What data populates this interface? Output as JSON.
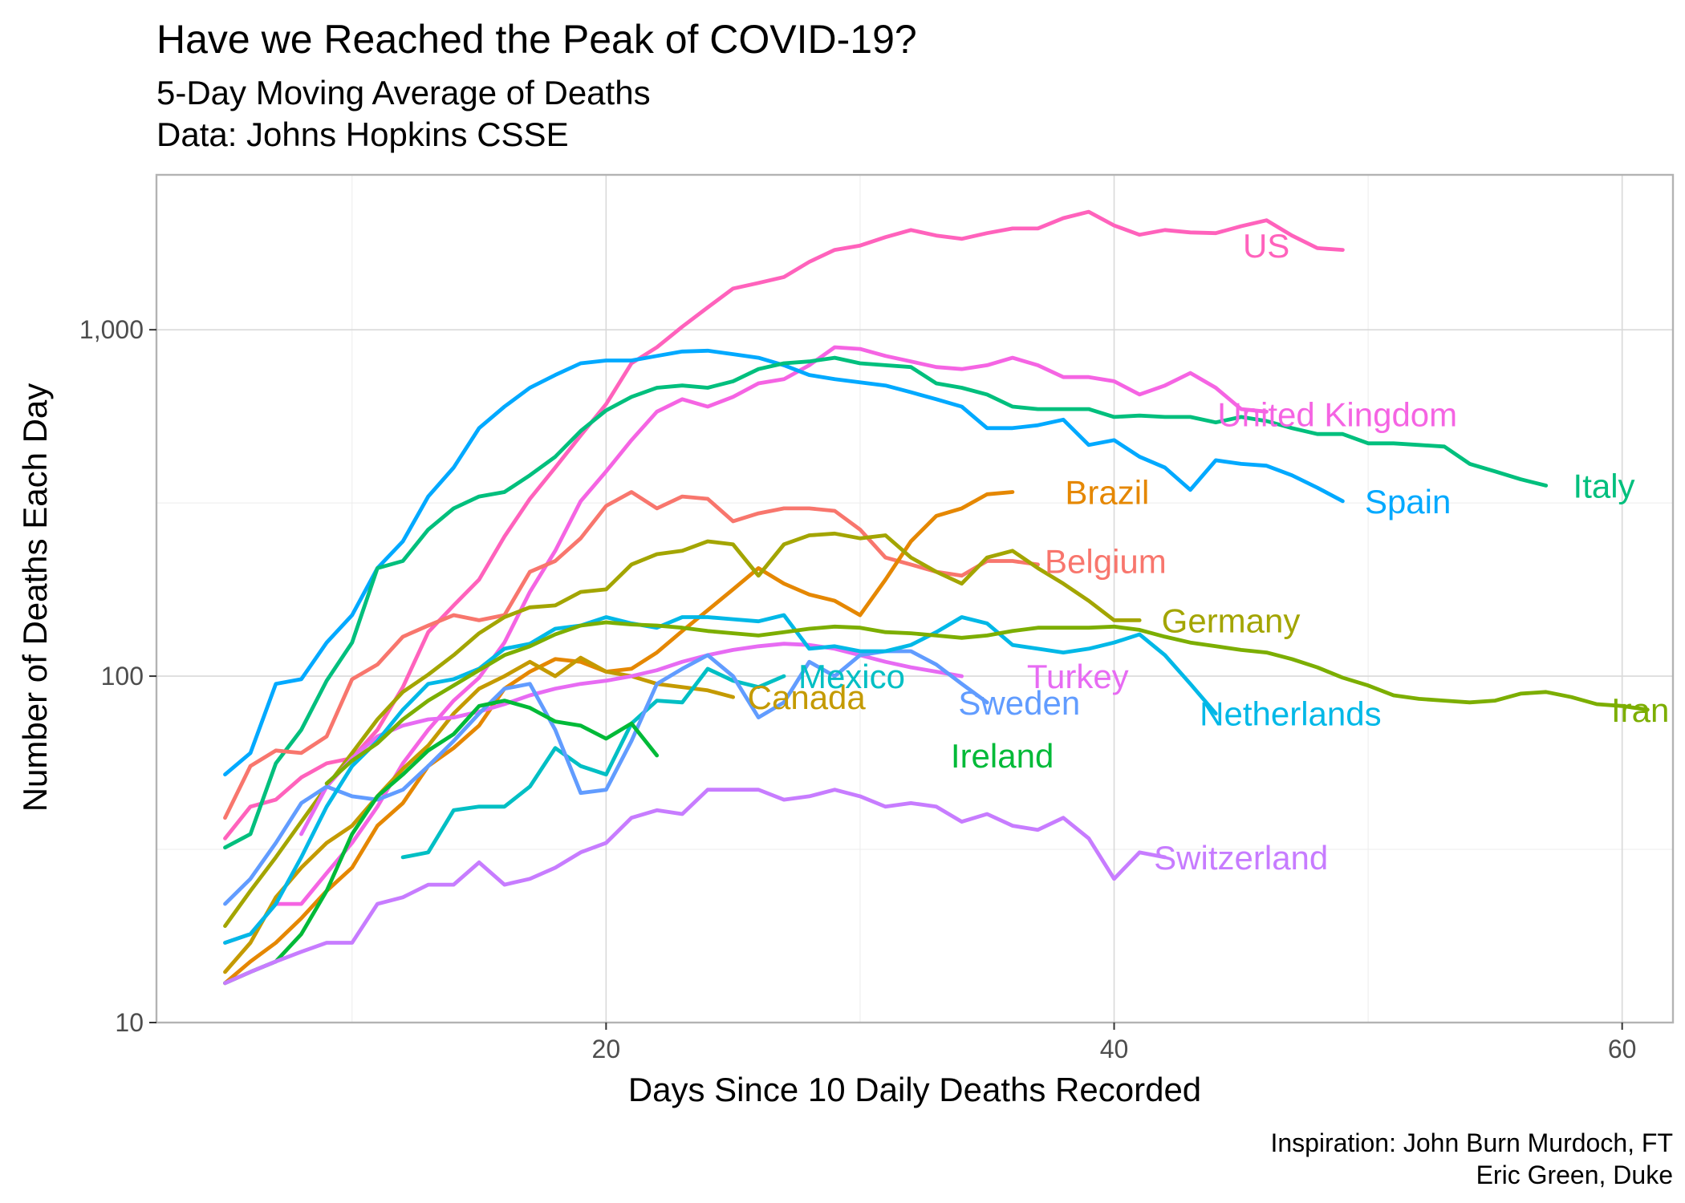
{
  "chart_data": {
    "type": "line",
    "title": "Have we Reached the Peak of COVID-19?",
    "subtitle_lines": [
      "5-Day Moving Average of Deaths",
      "Data: Johns Hopkins CSSE"
    ],
    "xlabel": "Days Since 10 Daily Deaths Recorded",
    "ylabel": "Number of Deaths Each Day",
    "caption_lines": [
      "Inspiration: John Burn Murdoch, FT",
      "Eric Green, Duke"
    ],
    "y_scale": "log10",
    "xlim": [
      2.3,
      62
    ],
    "ylim": [
      10,
      2800
    ],
    "x_ticks": [
      20,
      40,
      60
    ],
    "x_tick_labels": [
      "20",
      "40",
      "60"
    ],
    "y_ticks": [
      10,
      100,
      1000
    ],
    "y_tick_labels": [
      "10",
      "100",
      "1,000"
    ],
    "grid": true,
    "legend": "none",
    "series": [
      {
        "name": "US",
        "color": "#FF62BC",
        "start_day": 5,
        "label_pos": [
          44.5,
          1750
        ],
        "values": [
          34,
          42,
          44,
          51,
          56,
          58,
          70,
          93,
          134,
          160,
          190,
          253,
          325,
          400,
          495,
          610,
          800,
          890,
          1020,
          1160,
          1315,
          1365,
          1420,
          1570,
          1700,
          1750,
          1850,
          1940,
          1870,
          1830,
          1900,
          1960,
          1960,
          2100,
          2190,
          2000,
          1880,
          1940,
          1910,
          1900,
          1990,
          2070,
          1870,
          1720,
          1700
        ]
      },
      {
        "name": "United Kingdom",
        "color": "#F564E3",
        "start_day": 5,
        "label_pos": [
          43.5,
          570
        ],
        "values": [
          17,
          18,
          22,
          22,
          27,
          33,
          42,
          56,
          70,
          85,
          99,
          125,
          175,
          230,
          320,
          390,
          480,
          580,
          630,
          600,
          640,
          700,
          720,
          790,
          890,
          880,
          840,
          810,
          780,
          770,
          790,
          830,
          790,
          730,
          730,
          710,
          650,
          690,
          750,
          680,
          590,
          580
        ]
      },
      {
        "name": "Spain",
        "color": "#00A9FF",
        "start_day": 5,
        "label_pos": [
          49.3,
          320
        ],
        "values": [
          52,
          60,
          95,
          98,
          125,
          150,
          205,
          245,
          330,
          400,
          520,
          600,
          680,
          740,
          800,
          815,
          815,
          840,
          865,
          870,
          850,
          830,
          790,
          740,
          720,
          705,
          690,
          660,
          630,
          600,
          520,
          520,
          530,
          550,
          465,
          480,
          430,
          400,
          345,
          420,
          410,
          405,
          380,
          350,
          320
        ]
      },
      {
        "name": "Italy",
        "color": "#00BF7D",
        "start_day": 5,
        "label_pos": [
          57.5,
          355
        ],
        "values": [
          32,
          35,
          56,
          70,
          97,
          125,
          205,
          215,
          265,
          305,
          330,
          340,
          380,
          430,
          510,
          585,
          640,
          680,
          690,
          680,
          710,
          770,
          800,
          810,
          830,
          800,
          790,
          780,
          700,
          680,
          650,
          600,
          590,
          590,
          590,
          560,
          565,
          560,
          560,
          540,
          560,
          545,
          520,
          500,
          500,
          470,
          470,
          465,
          460,
          410,
          390,
          370,
          355
        ]
      },
      {
        "name": "Belgium",
        "color": "#F8766D",
        "start_day": 5,
        "label_pos": [
          36.7,
          215
        ],
        "values": [
          39,
          55,
          61,
          60,
          67,
          98,
          108,
          130,
          140,
          150,
          145,
          150,
          200,
          215,
          250,
          310,
          340,
          305,
          330,
          325,
          280,
          295,
          305,
          305,
          300,
          265,
          220,
          210,
          200,
          195,
          215,
          215,
          210
        ]
      },
      {
        "name": "Brazil",
        "color": "#E58700",
        "start_day": 5,
        "label_pos": [
          37.5,
          340
        ],
        "values": [
          13,
          15,
          17,
          20,
          24,
          28,
          37,
          43,
          55,
          62,
          72,
          92,
          103,
          112,
          110,
          103,
          105,
          117,
          135,
          155,
          178,
          205,
          185,
          172,
          165,
          150,
          190,
          245,
          290,
          305,
          335,
          340
        ]
      },
      {
        "name": "Germany",
        "color": "#A3A500",
        "start_day": 5,
        "label_pos": [
          41.3,
          145
        ],
        "values": [
          19,
          24,
          30,
          38,
          48,
          60,
          75,
          90,
          101,
          115,
          133,
          148,
          158,
          160,
          175,
          178,
          210,
          225,
          230,
          245,
          240,
          195,
          240,
          255,
          258,
          250,
          255,
          220,
          200,
          185,
          220,
          230,
          205,
          185,
          165,
          145,
          145
        ]
      },
      {
        "name": "Canada",
        "color": "#C49A00",
        "start_day": 5,
        "label_pos": [
          25,
          87
        ],
        "values": [
          14,
          17,
          23,
          28,
          33,
          37,
          45,
          54,
          63,
          78,
          92,
          100,
          110,
          100,
          113,
          103,
          100,
          95,
          93,
          91,
          87
        ]
      },
      {
        "name": "Turkey",
        "color": "#E76BF3",
        "start_day": 8,
        "label_pos": [
          36,
          100
        ],
        "values": [
          35,
          48,
          58,
          67,
          72,
          75,
          76,
          79,
          83,
          88,
          92,
          95,
          97,
          100,
          104,
          110,
          115,
          119,
          122,
          124,
          123,
          120,
          115,
          110,
          106,
          103,
          100
        ]
      },
      {
        "name": "Mexico",
        "color": "#00BFC4",
        "start_day": 12,
        "label_pos": [
          27,
          100
        ],
        "values": [
          30,
          31,
          41,
          42,
          42,
          48,
          62,
          55,
          52,
          73,
          85,
          84,
          105,
          97,
          93,
          100
        ]
      },
      {
        "name": "Sweden",
        "color": "#619CFF",
        "start_day": 5,
        "label_pos": [
          33.3,
          84
        ],
        "values": [
          22,
          26,
          33,
          43,
          48,
          45,
          44,
          47,
          55,
          65,
          78,
          92,
          95,
          70,
          46,
          47,
          65,
          95,
          105,
          115,
          100,
          76,
          84,
          110,
          100,
          115,
          118,
          118,
          108,
          95,
          84
        ]
      },
      {
        "name": "Netherlands",
        "color": "#00B8E7",
        "start_day": 5,
        "label_pos": [
          42.8,
          78
        ],
        "values": [
          17,
          18,
          22,
          30,
          42,
          55,
          65,
          80,
          95,
          98,
          105,
          120,
          124,
          137,
          140,
          148,
          142,
          138,
          148,
          148,
          146,
          144,
          150,
          120,
          122,
          118,
          118,
          123,
          134,
          148,
          142,
          123,
          120,
          117,
          120,
          125,
          132,
          115,
          95,
          78
        ]
      },
      {
        "name": "Ireland",
        "color": "#00BA38",
        "start_day": 5,
        "label_pos": [
          33,
          59
        ],
        "values": [
          13,
          14,
          15,
          18,
          24,
          35,
          45,
          52,
          61,
          68,
          82,
          85,
          81,
          74,
          72,
          66,
          73,
          59
        ]
      },
      {
        "name": "Iran",
        "color": "#7CAE00",
        "start_day": 9,
        "label_pos": [
          59,
          80
        ],
        "values": [
          49,
          57,
          64,
          75,
          85,
          94,
          104,
          115,
          122,
          132,
          140,
          143,
          141,
          140,
          138,
          135,
          133,
          131,
          134,
          137,
          139,
          138,
          134,
          133,
          131,
          129,
          131,
          135,
          138,
          138,
          138,
          139,
          136,
          130,
          125,
          122,
          119,
          117,
          112,
          106,
          99,
          94,
          88,
          86,
          85,
          84,
          85,
          89,
          90,
          87,
          83,
          82,
          80
        ]
      },
      {
        "name": "Switzerland",
        "color": "#C77CFF",
        "start_day": 5,
        "label_pos": [
          41,
          30
        ],
        "values": [
          13,
          14,
          15,
          16,
          17,
          17,
          22,
          23,
          25,
          25,
          29,
          25,
          26,
          28,
          31,
          33,
          39,
          41,
          40,
          47,
          47,
          47,
          44,
          45,
          47,
          45,
          42,
          43,
          42,
          38,
          40,
          37,
          36,
          39,
          34,
          26,
          31,
          30
        ]
      }
    ]
  }
}
